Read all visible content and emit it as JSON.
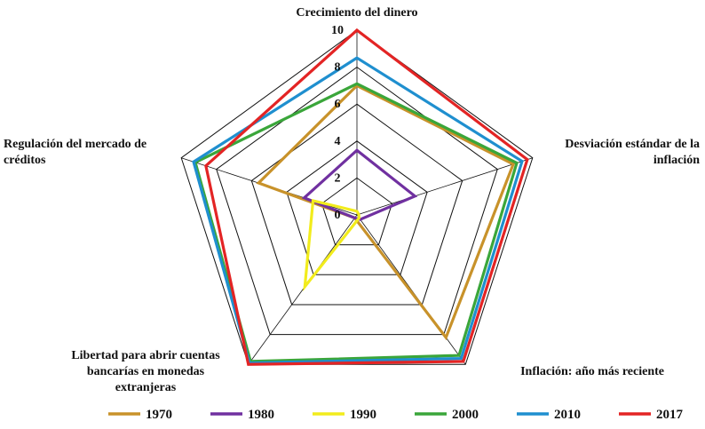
{
  "chart_data": {
    "type": "radar",
    "title": "",
    "axes": [
      {
        "label_lines": [
          "Crecimiento del dinero"
        ]
      },
      {
        "label_lines": [
          "Desviación estándar de la",
          "inflación"
        ]
      },
      {
        "label_lines": [
          "Inflación: año más reciente"
        ]
      },
      {
        "label_lines": [
          "Libertad para abrir cuentas",
          "bancarías en monedas",
          "extranjeras"
        ]
      },
      {
        "label_lines": [
          "Regulación del mercado de",
          "créditos"
        ]
      }
    ],
    "range": [
      0,
      10
    ],
    "ticks": [
      0,
      2,
      4,
      6,
      8,
      10
    ],
    "tick_labels": [
      "0",
      "2",
      "4",
      "6",
      "8",
      "10"
    ],
    "grid": true,
    "legend_position": "bottom",
    "series": [
      {
        "name": "1970",
        "color": "#c8922a",
        "values": [
          7.0,
          8.9,
          8.2,
          0.2,
          5.6
        ]
      },
      {
        "name": "1980",
        "color": "#7030a0",
        "values": [
          3.5,
          3.3,
          0.3,
          0.2,
          3.0
        ]
      },
      {
        "name": "1990",
        "color": "#f2ec1c",
        "values": [
          0.2,
          0.1,
          0.2,
          4.8,
          2.5
        ]
      },
      {
        "name": "2000",
        "color": "#3aa63a",
        "values": [
          7.1,
          9.1,
          9.4,
          9.8,
          9.2
        ]
      },
      {
        "name": "2010",
        "color": "#1f8fcf",
        "values": [
          8.5,
          9.4,
          9.6,
          9.9,
          9.3
        ]
      },
      {
        "name": "2017",
        "color": "#e32424",
        "values": [
          10.0,
          9.7,
          9.8,
          10.0,
          8.6
        ]
      }
    ]
  }
}
